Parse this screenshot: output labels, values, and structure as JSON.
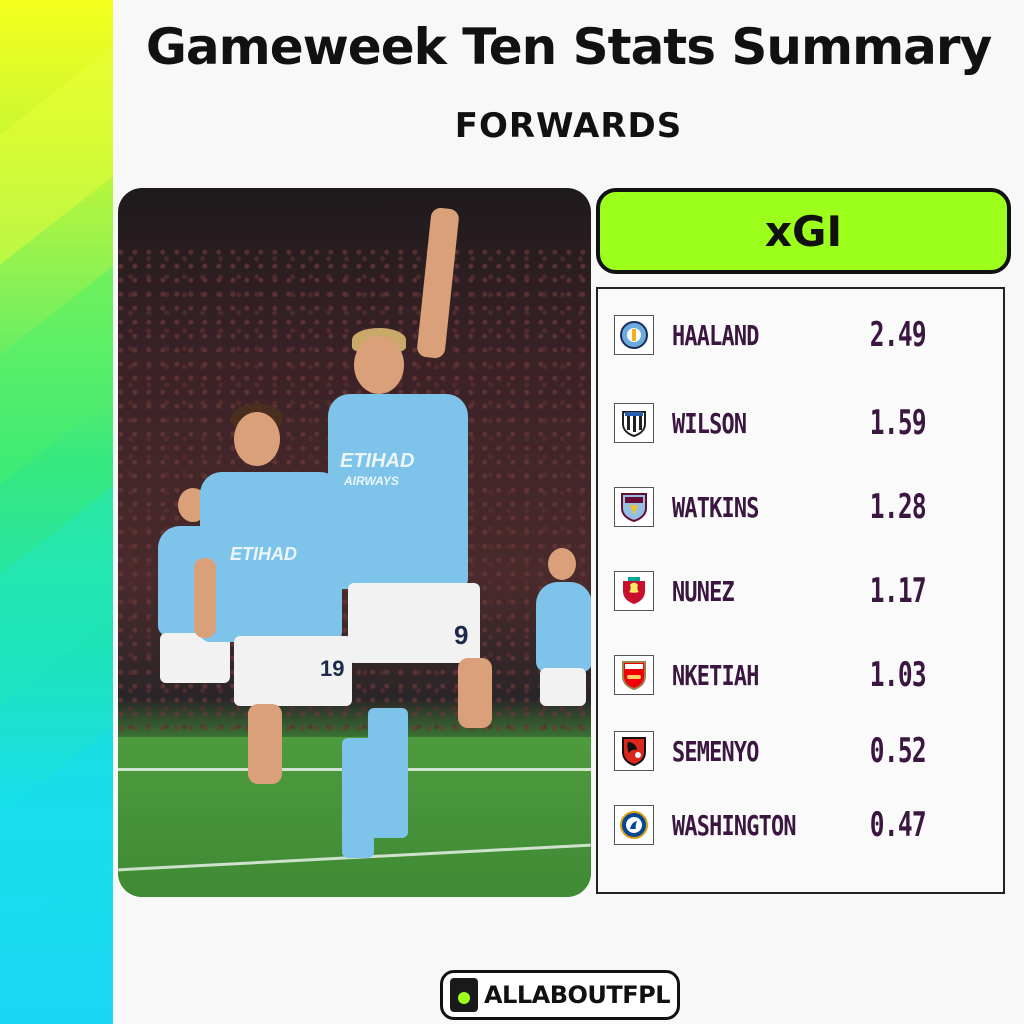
{
  "header": {
    "title": "Gameweek Ten Stats Summary",
    "subtitle": "FORWARDS"
  },
  "photo": {
    "sponsor_main": "ETIHAD",
    "sponsor_sub": "AIRWAYS",
    "shirt_numbers": [
      "19",
      "9"
    ]
  },
  "stat": {
    "label": "xGI",
    "accent_color": "#9cff1c",
    "text_color": "#3a1640",
    "rows": [
      {
        "player": "HAALAND",
        "value": "2.49",
        "club_icon": "man-city-crest-icon",
        "club_color": "#6cabdd"
      },
      {
        "player": "WILSON",
        "value": "1.59",
        "club_icon": "newcastle-crest-icon",
        "club_color": "#241f20"
      },
      {
        "player": "WATKINS",
        "value": "1.28",
        "club_icon": "aston-villa-crest-icon",
        "club_color": "#95bfe5"
      },
      {
        "player": "NUNEZ",
        "value": "1.17",
        "club_icon": "liverpool-crest-icon",
        "club_color": "#c8102e"
      },
      {
        "player": "NKETIAH",
        "value": "1.03",
        "club_icon": "arsenal-crest-icon",
        "club_color": "#ef0107"
      },
      {
        "player": "SEMENYO",
        "value": "0.52",
        "club_icon": "bournemouth-crest-icon",
        "club_color": "#da291c"
      },
      {
        "player": "WASHINGTON",
        "value": "0.47",
        "club_icon": "chelsea-crest-icon",
        "club_color": "#034694"
      }
    ]
  },
  "brand": {
    "name": "ALLABOUTFPL"
  }
}
